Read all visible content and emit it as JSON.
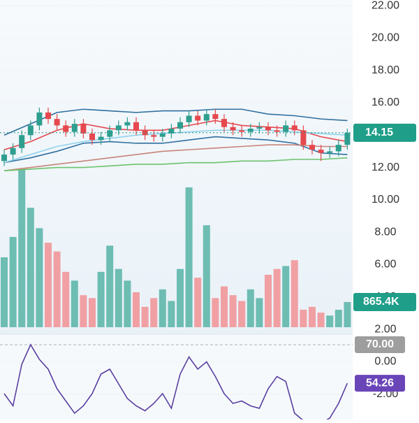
{
  "chart_data": {
    "type": "candlestick",
    "up_color": "#2e9e8f",
    "down_color": "#e5484d",
    "open": [
      12.4,
      12.8,
      13.2,
      14.0,
      14.6,
      15.4,
      15.0,
      14.6,
      14.2,
      14.7,
      14.1,
      13.7,
      13.9,
      14.3,
      14.6,
      14.8,
      14.3,
      14.0,
      13.9,
      14.1,
      14.4,
      14.8,
      15.2,
      14.9,
      15.3,
      15.0,
      14.5,
      14.3,
      14.2,
      14.4,
      14.5,
      14.3,
      14.2,
      14.6,
      14.3,
      13.4,
      13.1,
      12.9,
      13.0,
      13.4
    ],
    "high": [
      13.1,
      13.5,
      14.3,
      14.9,
      15.7,
      15.7,
      15.3,
      14.9,
      15.0,
      15.0,
      14.4,
      14.2,
      14.6,
      14.9,
      15.1,
      15.1,
      14.6,
      14.3,
      14.4,
      14.7,
      15.1,
      15.5,
      15.5,
      15.6,
      15.6,
      15.3,
      14.8,
      14.6,
      14.7,
      14.8,
      14.8,
      14.6,
      14.9,
      14.9,
      14.6,
      13.7,
      13.4,
      13.3,
      13.7,
      14.4
    ],
    "low": [
      12.1,
      12.5,
      12.9,
      13.7,
      14.3,
      14.7,
      14.3,
      13.9,
      13.9,
      13.8,
      13.4,
      13.4,
      13.6,
      14.0,
      14.3,
      14.0,
      13.7,
      13.6,
      13.6,
      13.8,
      14.1,
      14.5,
      14.6,
      14.6,
      14.7,
      14.2,
      14.0,
      13.9,
      13.9,
      14.1,
      14.0,
      13.9,
      13.9,
      14.0,
      13.1,
      12.8,
      12.4,
      12.6,
      12.7,
      13.1
    ],
    "close": [
      12.8,
      13.2,
      14.0,
      14.6,
      15.4,
      15.0,
      14.6,
      14.2,
      14.7,
      14.1,
      13.7,
      13.9,
      14.3,
      14.6,
      14.8,
      14.3,
      14.0,
      13.9,
      14.1,
      14.4,
      14.8,
      15.2,
      14.9,
      15.3,
      15.0,
      14.5,
      14.3,
      14.2,
      14.4,
      14.5,
      14.3,
      14.2,
      14.6,
      14.3,
      13.4,
      13.1,
      12.9,
      13.0,
      13.4,
      14.15
    ],
    "ylim": [
      -3.57,
      22.35
    ],
    "yticks": [
      {
        "value": 22,
        "label": "22.00"
      },
      {
        "value": 20,
        "label": "20.00"
      },
      {
        "value": 18,
        "label": "18.00"
      },
      {
        "value": 16,
        "label": "16.00"
      },
      {
        "value": 14,
        "label": "14.00"
      },
      {
        "value": 12,
        "label": "12.00"
      },
      {
        "value": 10,
        "label": "10.00"
      },
      {
        "value": 8,
        "label": "8.00"
      },
      {
        "value": 6,
        "label": "6.00"
      },
      {
        "value": 4,
        "label": "4.00"
      },
      {
        "value": 2,
        "label": "2.00"
      },
      {
        "value": 0,
        "label": "0.00"
      },
      {
        "value": -2,
        "label": "-2.00"
      }
    ],
    "indicators": {
      "x": [
        0,
        3,
        6,
        9,
        12,
        15,
        18,
        21,
        24,
        27,
        30,
        33,
        36,
        39
      ],
      "series": [
        {
          "color": "#2f6f9f",
          "values": [
            14.0,
            14.7,
            15.4,
            15.6,
            15.5,
            15.4,
            15.5,
            15.5,
            15.6,
            15.6,
            15.3,
            15.2,
            15.0,
            14.9
          ]
        },
        {
          "color": "#e5484d",
          "values": [
            13.1,
            13.6,
            14.3,
            14.7,
            14.4,
            14.3,
            14.3,
            14.6,
            14.9,
            14.6,
            14.5,
            14.4,
            13.9,
            13.6
          ]
        },
        {
          "color": "#2f6f9f",
          "values": [
            12.3,
            12.6,
            13.0,
            13.5,
            13.6,
            13.5,
            13.5,
            13.7,
            13.9,
            13.8,
            13.7,
            13.5,
            12.9,
            12.8
          ]
        },
        {
          "color": "#8fd3ee",
          "values": [
            12.3,
            12.8,
            13.3,
            13.6,
            13.8,
            14.0,
            14.1,
            14.2,
            14.3,
            14.3,
            14.3,
            14.2,
            14.1,
            14.0
          ]
        },
        {
          "color": "#c9847a",
          "values": [
            11.8,
            12.0,
            12.2,
            12.4,
            12.6,
            12.8,
            13.0,
            13.1,
            13.2,
            13.3,
            13.4,
            13.4,
            13.3,
            13.3
          ]
        },
        {
          "color": "#6cc36c",
          "values": [
            11.8,
            11.9,
            12.0,
            12.0,
            12.1,
            12.2,
            12.2,
            12.3,
            12.3,
            12.4,
            12.4,
            12.5,
            12.5,
            12.6
          ]
        }
      ]
    },
    "volume": {
      "values": [
        2400,
        3100,
        5400,
        4100,
        3400,
        2900,
        2600,
        1900,
        1600,
        1100,
        1000,
        1900,
        2800,
        2000,
        1600,
        1200,
        700,
        1000,
        1300,
        900,
        2000,
        4800,
        1700,
        3500,
        1000,
        1400,
        1100,
        900,
        1300,
        1000,
        1800,
        2000,
        2100,
        2300,
        600,
        700,
        500,
        400,
        600,
        865.4
      ],
      "last_value_label": "865.4K"
    },
    "rsi": {
      "color": "#5b3fa0",
      "values": [
        50,
        45,
        62,
        70,
        64,
        60,
        52,
        47,
        42,
        45,
        50,
        58,
        60,
        54,
        48,
        45,
        43,
        46,
        50,
        44,
        58,
        65,
        60,
        63,
        57,
        50,
        46,
        47,
        45,
        44,
        52,
        57,
        55,
        42,
        39,
        39,
        38,
        40,
        46,
        54.26
      ],
      "level": {
        "value": 70,
        "label": "70.00"
      }
    }
  }
}
